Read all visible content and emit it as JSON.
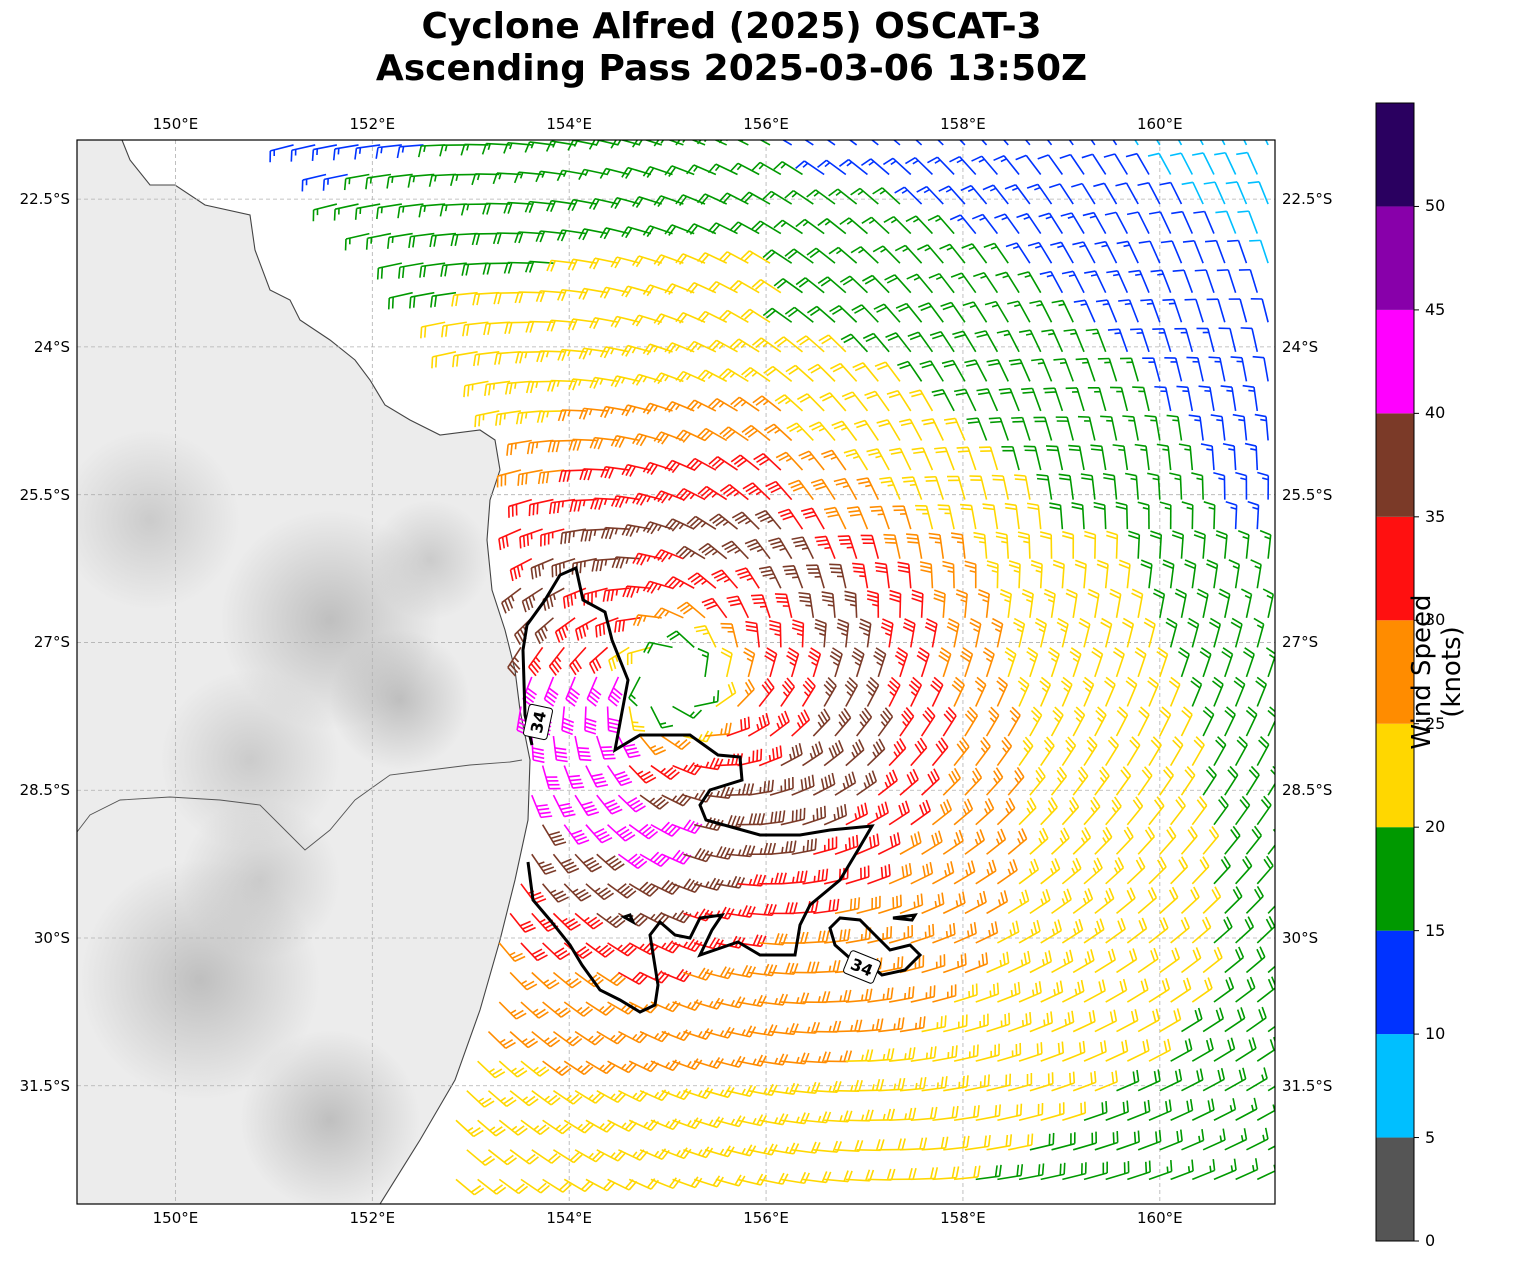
{
  "title": {
    "line1": "Cyclone Alfred (2025) OSCAT-3",
    "line2": "Ascending Pass 2025-03-06 13:50Z"
  },
  "map": {
    "lon_range": [
      149.0,
      161.17
    ],
    "lat_range": [
      -32.7,
      -21.9
    ],
    "lon_ticks": [
      150,
      152,
      154,
      156,
      158,
      160
    ],
    "lon_tick_labels": [
      "150°E",
      "152°E",
      "154°E",
      "156°E",
      "158°E",
      "160°E"
    ],
    "lat_ticks": [
      -22.5,
      -24,
      -25.5,
      -27,
      -28.5,
      -30,
      -31.5
    ],
    "lat_tick_labels": [
      "22.5°S",
      "24°S",
      "25.5°S",
      "27°S",
      "28.5°S",
      "30°S",
      "31.5°S"
    ],
    "gridlines": true,
    "background": "grayscale terrain",
    "coastline_color": "#444444",
    "grid_color": "#b0b0b0"
  },
  "wind_field": {
    "type": "wind barbs",
    "storm_center": {
      "lon": 155.1,
      "lat": -27.4
    },
    "swath_west_edge": [
      [
        151.2,
        -22.0
      ],
      [
        153.5,
        -25.0
      ],
      [
        153.4,
        -27.0
      ],
      [
        153.6,
        -28.5
      ],
      [
        153.3,
        -30.0
      ],
      [
        152.6,
        -32.7
      ]
    ],
    "contour_34kt_label": "34"
  },
  "colorbar": {
    "label": "Wind Speed (knots)",
    "bounds": [
      0,
      5,
      10,
      15,
      20,
      25,
      30,
      35,
      40,
      45,
      50,
      55
    ],
    "tick_labels": [
      "0",
      "5",
      "10",
      "15",
      "20",
      "25",
      "30",
      "35",
      "40",
      "45",
      "50"
    ],
    "colors": [
      "#555555",
      "#00bfff",
      "#0033ff",
      "#009900",
      "#ffd700",
      "#ff8c00",
      "#ff1010",
      "#7b3a28",
      "#ff00ff",
      "#8800aa",
      "#2a0060"
    ]
  }
}
